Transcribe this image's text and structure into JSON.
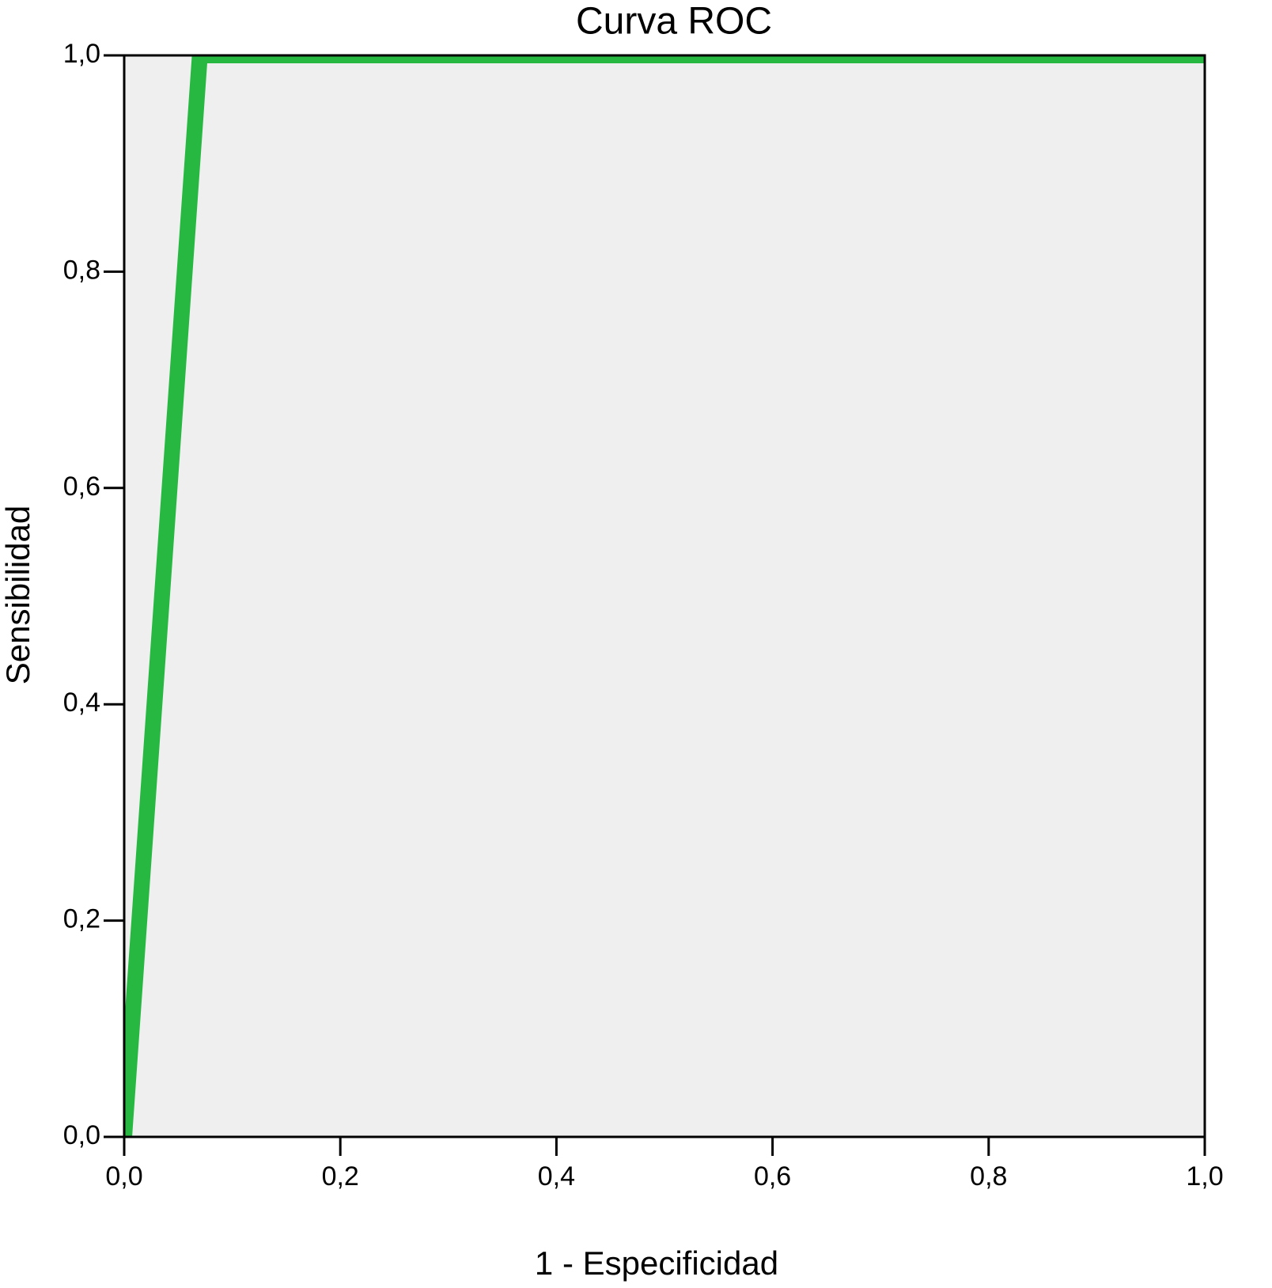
{
  "chart_data": {
    "type": "line",
    "title": "Curva ROC",
    "x_label": "1 - Especificidad",
    "y_label": "Sensibilidad",
    "x": [
      0,
      0.07,
      1
    ],
    "values": [
      0,
      1,
      1
    ],
    "color": "#27b842",
    "xlim": [
      0,
      1
    ],
    "ylim": [
      0,
      1
    ],
    "xticks": [
      {
        "value": 0,
        "label": "0,0"
      },
      {
        "value": 0.2,
        "label": "0,2"
      },
      {
        "value": 0.4,
        "label": "0,4"
      },
      {
        "value": 0.6,
        "label": "0,6"
      },
      {
        "value": 0.8,
        "label": "0,8"
      },
      {
        "value": 1,
        "label": "1,0"
      }
    ],
    "yticks": [
      {
        "value": 0,
        "label": "0,0"
      },
      {
        "value": 0.2,
        "label": "0,2"
      },
      {
        "value": 0.4,
        "label": "0,4"
      },
      {
        "value": 0.6,
        "label": "0,6"
      },
      {
        "value": 0.8,
        "label": "0,8"
      },
      {
        "value": 1,
        "label": "1,0"
      }
    ],
    "grid": false
  }
}
